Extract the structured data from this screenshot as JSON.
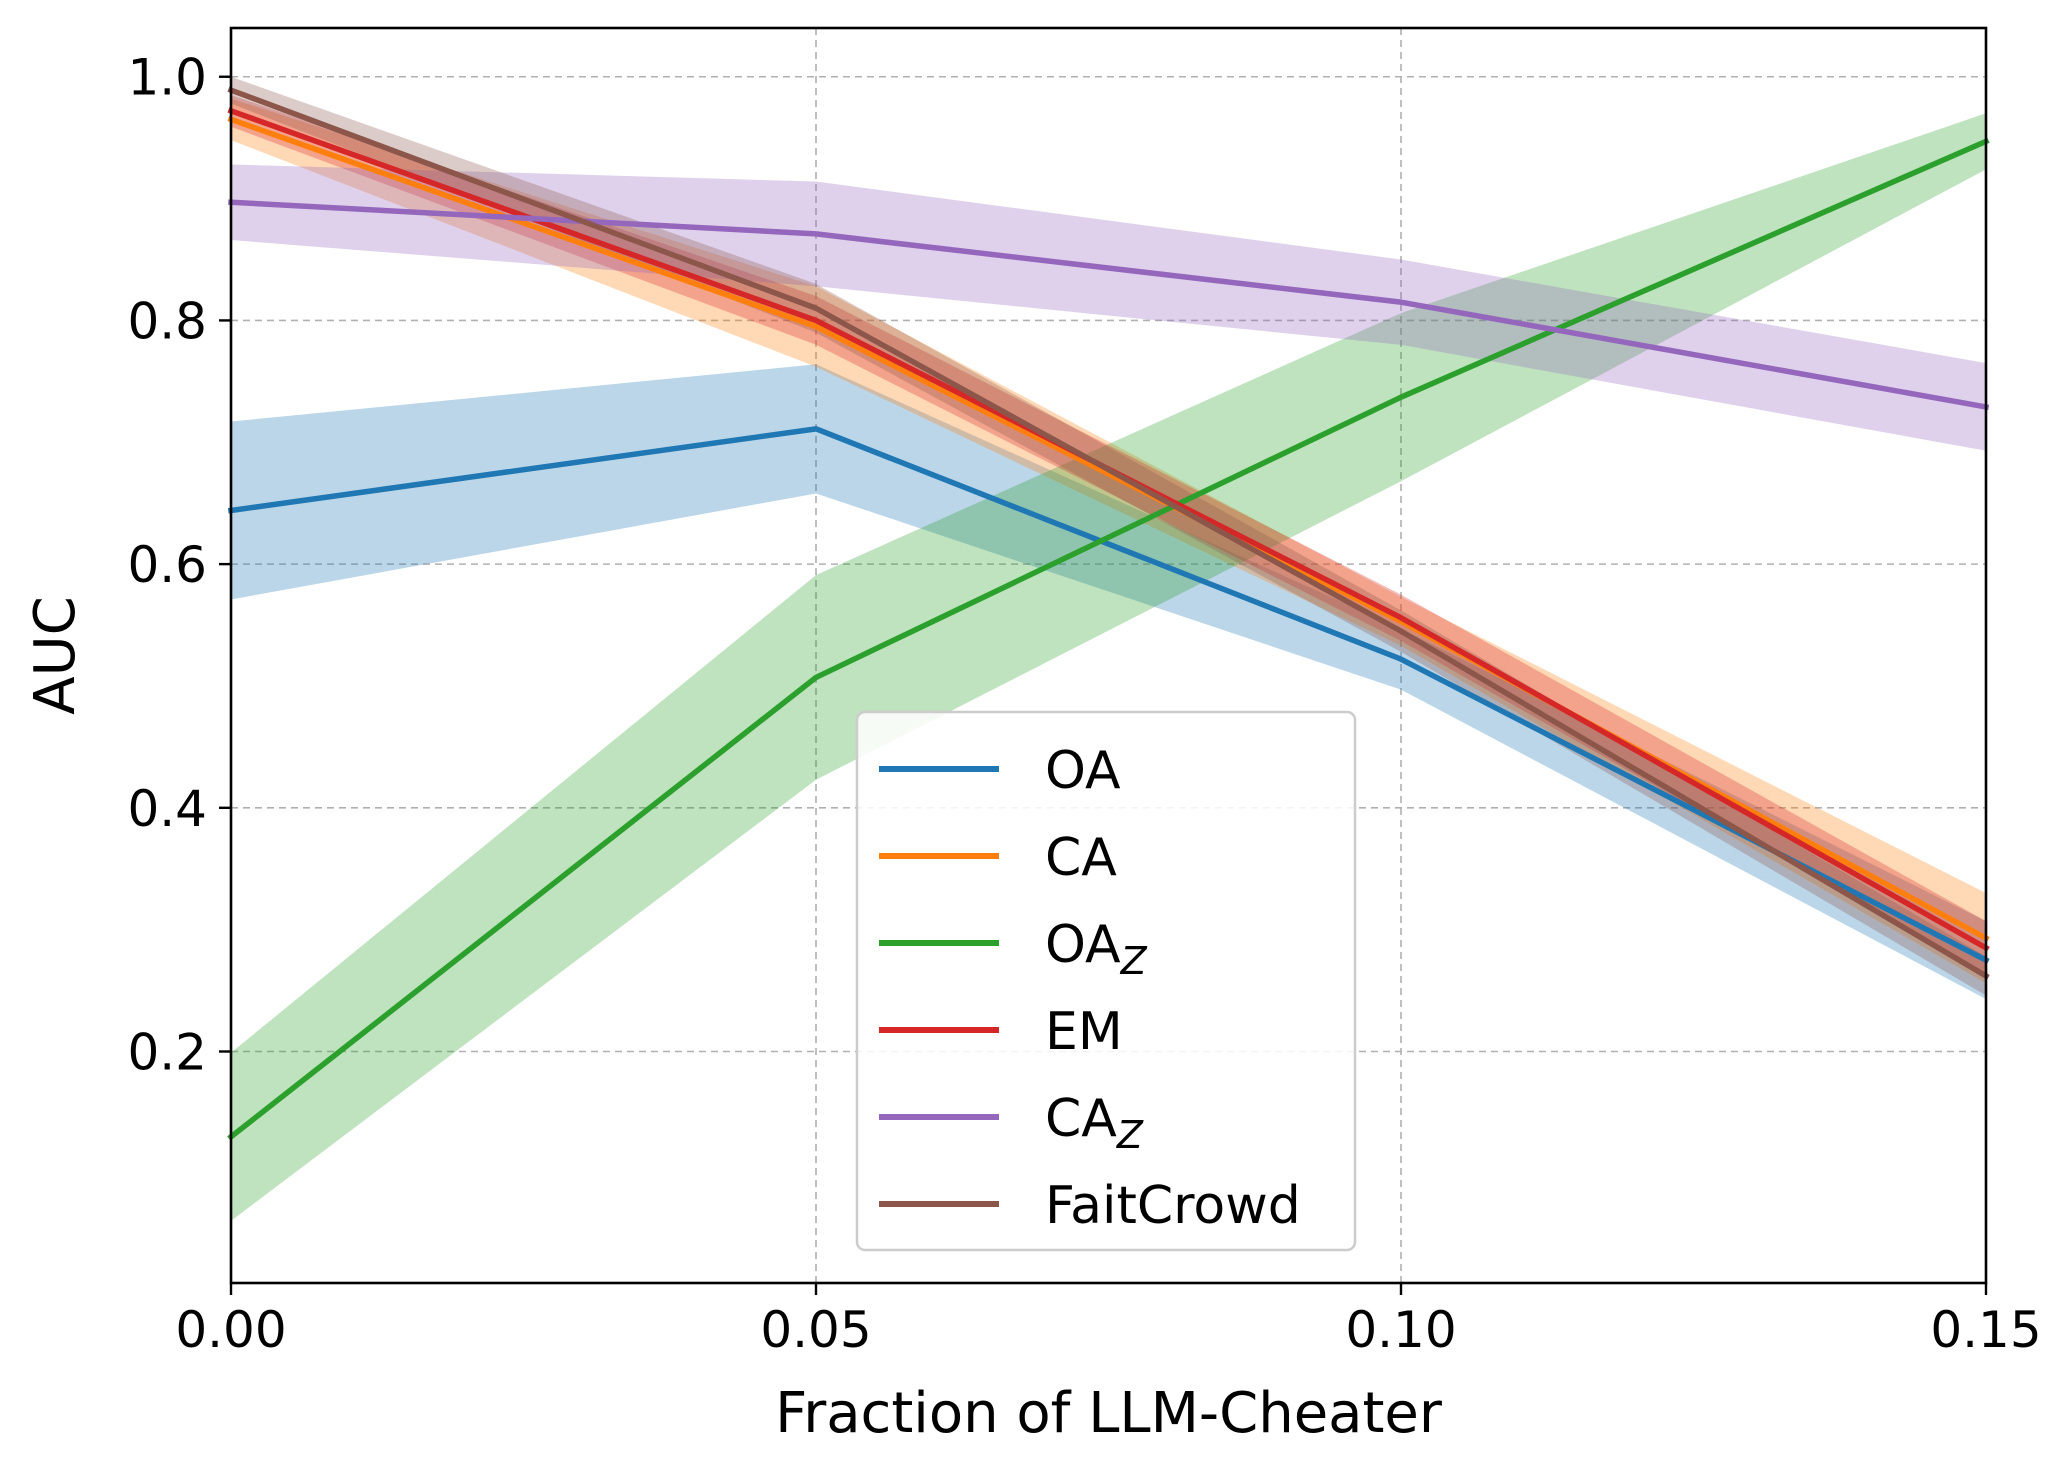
{
  "chart_data": {
    "type": "line",
    "xlabel": "Fraction of LLM-Cheater",
    "ylabel": "AUC",
    "xlim": [
      0.0,
      0.15
    ],
    "ylim": [
      0.01,
      1.04
    ],
    "x": [
      0.0,
      0.05,
      0.1,
      0.15
    ],
    "x_ticks": [
      0.0,
      0.05,
      0.1,
      0.15
    ],
    "x_tick_labels": [
      "0.00",
      "0.05",
      "0.10",
      "0.15"
    ],
    "y_ticks": [
      0.2,
      0.4,
      0.6,
      0.8,
      1.0
    ],
    "y_tick_labels": [
      "0.2",
      "0.4",
      "0.6",
      "0.8",
      "1.0"
    ],
    "grid": true,
    "legend_position": "lower-center",
    "series": [
      {
        "name": "OA",
        "sub": "",
        "color": "#1f77b4",
        "values": [
          0.644,
          0.711,
          0.522,
          0.275
        ],
        "lower": [
          0.571,
          0.658,
          0.497,
          0.243
        ],
        "upper": [
          0.717,
          0.764,
          0.547,
          0.307
        ]
      },
      {
        "name": "CA",
        "sub": "",
        "color": "#ff7f0e",
        "values": [
          0.965,
          0.795,
          0.553,
          0.293
        ],
        "lower": [
          0.948,
          0.762,
          0.533,
          0.256
        ],
        "upper": [
          0.982,
          0.828,
          0.573,
          0.33
        ]
      },
      {
        "name": "OA",
        "sub": "Z",
        "color": "#2ca02c",
        "values": [
          0.13,
          0.507,
          0.737,
          0.947
        ],
        "lower": [
          0.061,
          0.423,
          0.668,
          0.924
        ],
        "upper": [
          0.199,
          0.591,
          0.806,
          0.97
        ]
      },
      {
        "name": "EM",
        "sub": "",
        "color": "#d62728",
        "values": [
          0.972,
          0.8,
          0.556,
          0.285
        ],
        "lower": [
          0.959,
          0.78,
          0.537,
          0.263
        ],
        "upper": [
          0.985,
          0.82,
          0.575,
          0.307
        ]
      },
      {
        "name": "CA",
        "sub": "Z",
        "color": "#9467bd",
        "values": [
          0.897,
          0.871,
          0.815,
          0.729
        ],
        "lower": [
          0.866,
          0.828,
          0.78,
          0.693
        ],
        "upper": [
          0.928,
          0.914,
          0.85,
          0.765
        ]
      },
      {
        "name": "FaitCrowd",
        "sub": "",
        "color": "#8c564b",
        "values": [
          0.989,
          0.81,
          0.545,
          0.262
        ],
        "lower": [
          0.978,
          0.79,
          0.528,
          0.246
        ],
        "upper": [
          1.0,
          0.83,
          0.562,
          0.278
        ]
      }
    ]
  }
}
